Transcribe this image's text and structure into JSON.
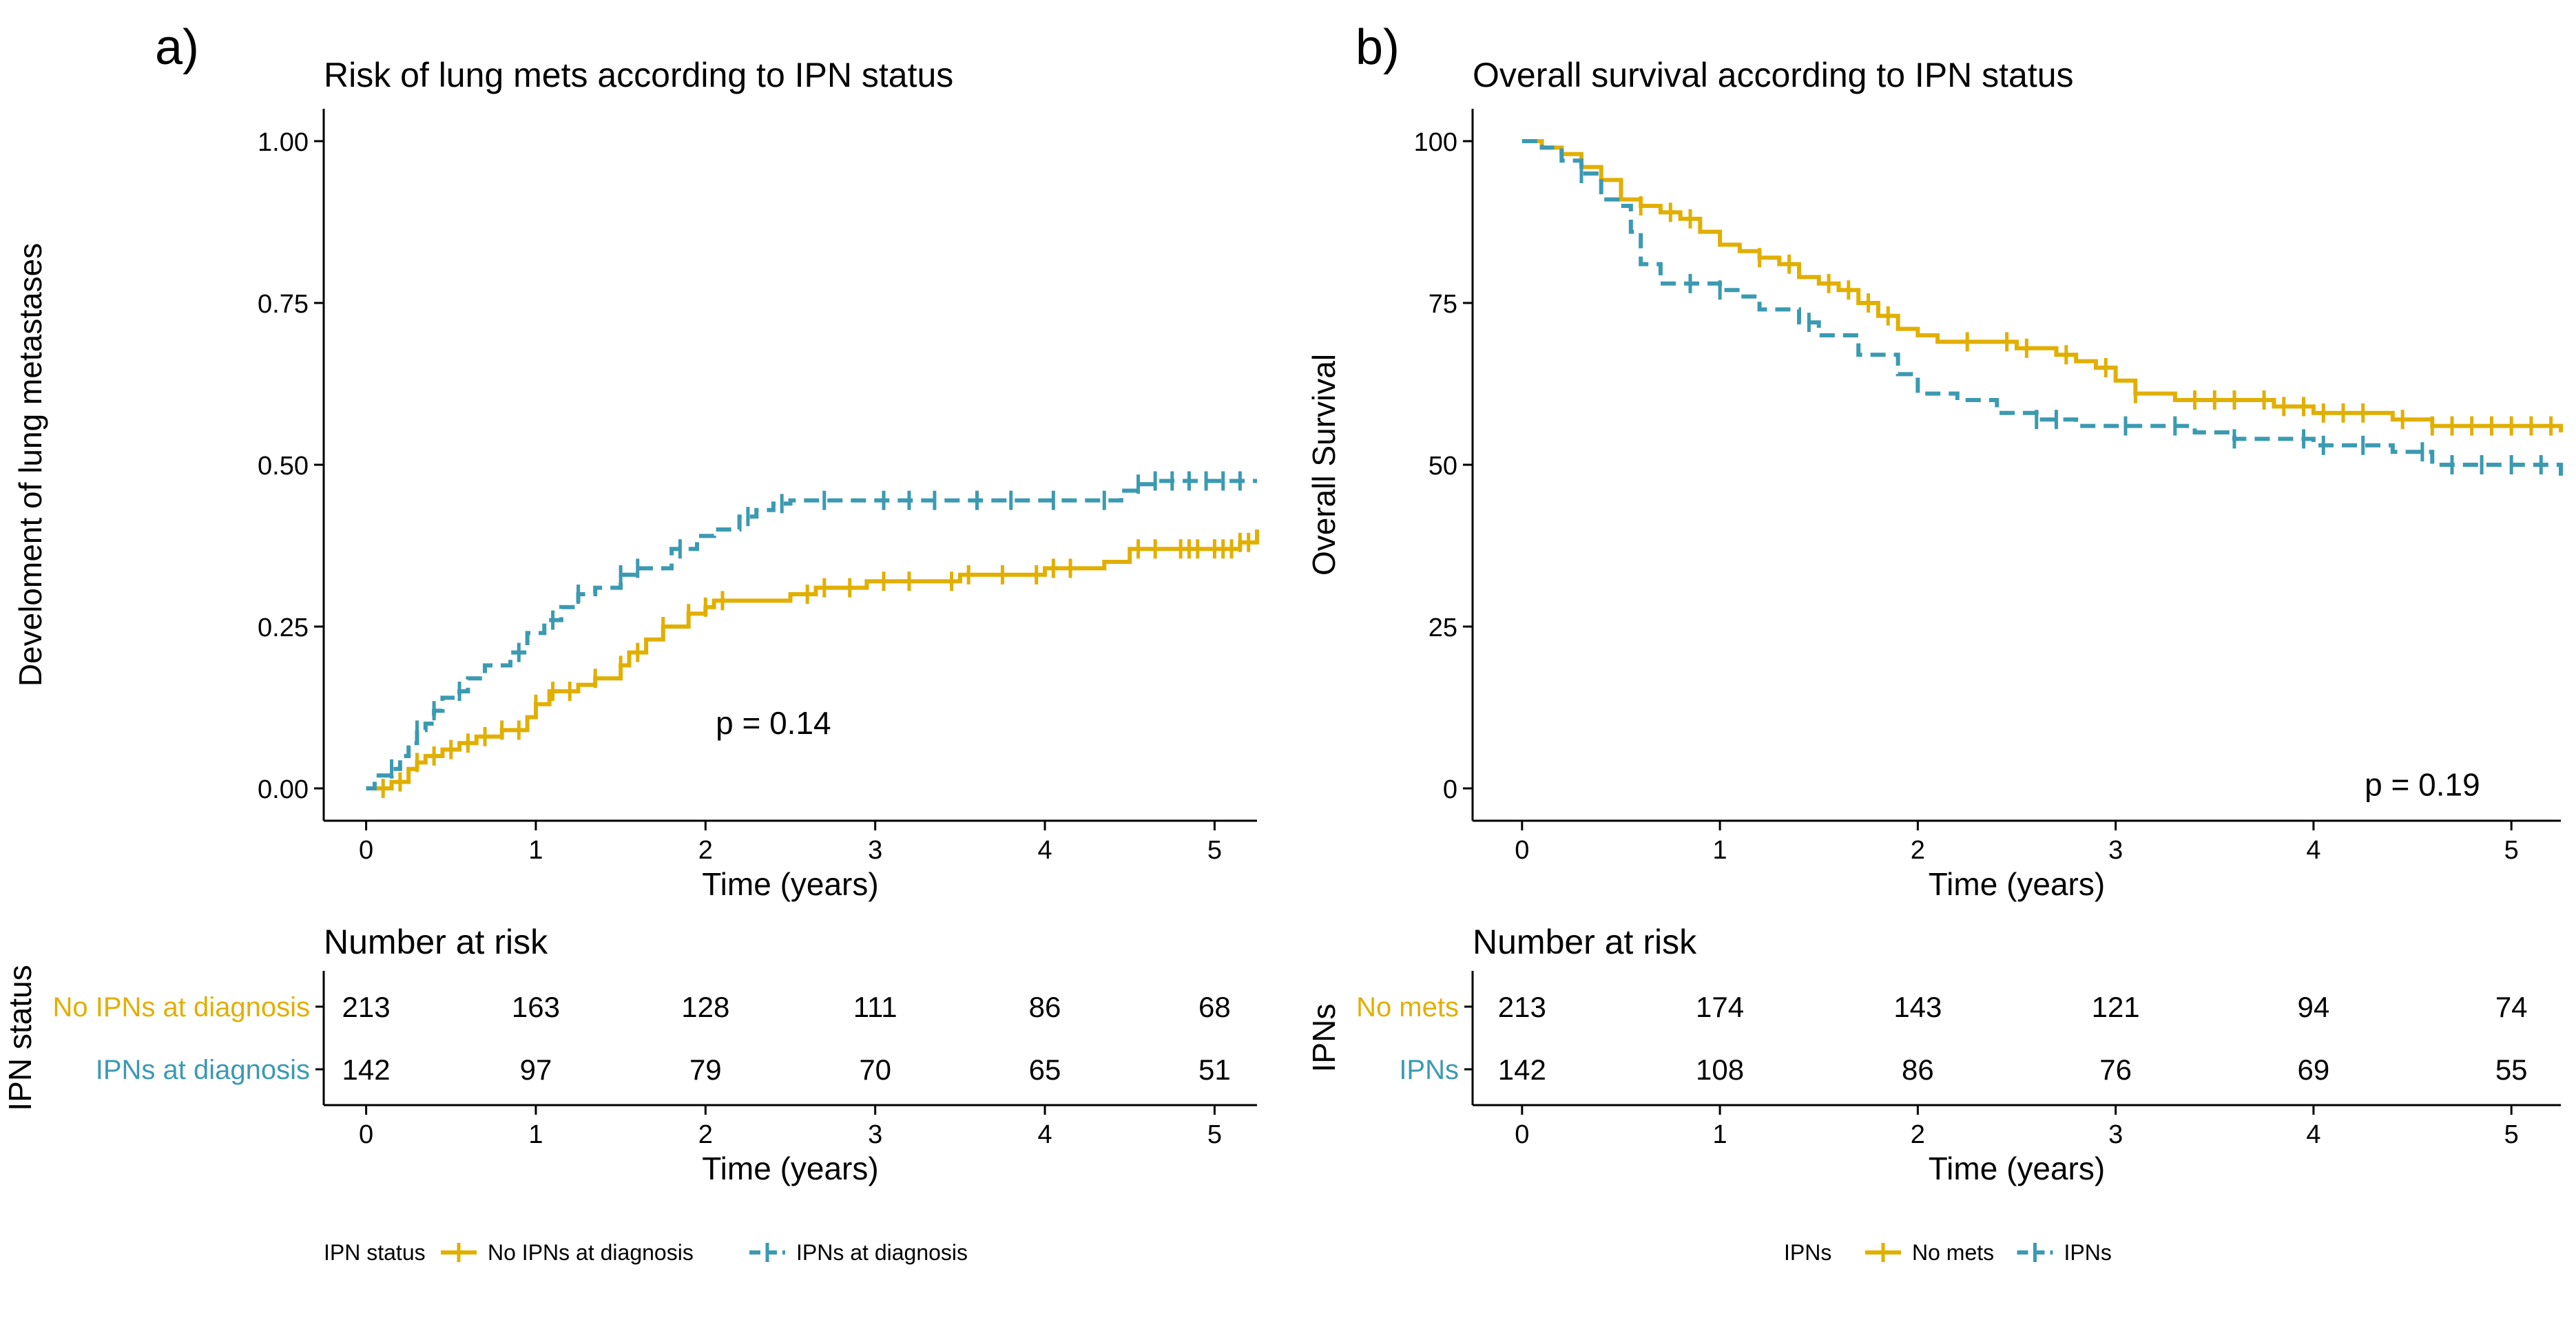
{
  "chart_data": [
    {
      "panel_label": "a)",
      "type": "line",
      "title": "Risk of lung mets according to IPN status",
      "xlabel": "Time (years)",
      "ylabel": "Develoment of lung metastases",
      "xlim": [
        -0.25,
        5.25
      ],
      "ylim": [
        -0.05,
        1.05
      ],
      "x_ticks": [
        0,
        1,
        2,
        3,
        4,
        5
      ],
      "x_tick_labels": [
        "0",
        "1",
        "2",
        "3",
        "4",
        "5"
      ],
      "y_ticks": [
        0,
        0.25,
        0.5,
        0.75,
        1.0
      ],
      "y_tick_labels": [
        "0.00",
        "0.25",
        "0.50",
        "0.75",
        "1.00"
      ],
      "grid": false,
      "annotation": {
        "text": "p = 0.14",
        "x": 2.4,
        "y": 0.1
      },
      "series": [
        {
          "name": "No IPNs at diagnosis",
          "color": "#E1AF00",
          "dash": "solid",
          "x": [
            0,
            0.1,
            0.15,
            0.25,
            0.3,
            0.35,
            0.45,
            0.55,
            0.65,
            0.8,
            0.95,
            1.0,
            1.08,
            1.25,
            1.35,
            1.5,
            1.55,
            1.65,
            1.75,
            1.9,
            2.0,
            2.05,
            2.2,
            2.35,
            2.5,
            2.65,
            2.8,
            2.95,
            3.1,
            3.3,
            3.5,
            3.65,
            3.8,
            4.0,
            4.1,
            4.25,
            4.35,
            4.5,
            4.7,
            4.95,
            5.05,
            5.15,
            5.25
          ],
          "y": [
            0,
            0,
            0.01,
            0.03,
            0.04,
            0.05,
            0.06,
            0.07,
            0.08,
            0.09,
            0.11,
            0.13,
            0.15,
            0.16,
            0.17,
            0.19,
            0.21,
            0.23,
            0.25,
            0.27,
            0.28,
            0.29,
            0.29,
            0.29,
            0.3,
            0.31,
            0.31,
            0.32,
            0.32,
            0.32,
            0.33,
            0.33,
            0.33,
            0.34,
            0.34,
            0.34,
            0.35,
            0.37,
            0.37,
            0.37,
            0.37,
            0.38,
            0.4
          ],
          "censor_x": [
            0.1,
            0.2,
            0.3,
            0.4,
            0.5,
            0.6,
            0.7,
            0.8,
            0.9,
            1.0,
            1.1,
            1.2,
            1.35,
            1.5,
            1.6,
            1.75,
            1.9,
            2.0,
            2.1,
            2.6,
            2.7,
            2.85,
            3.05,
            3.2,
            3.45,
            3.55,
            3.75,
            3.95,
            4.05,
            4.15,
            4.55,
            4.65,
            4.8,
            4.85,
            4.9,
            5.0,
            5.05,
            5.1,
            5.15,
            5.2
          ]
        },
        {
          "name": "IPNs at diagnosis",
          "color": "#3B9AB2",
          "dash": "dashed",
          "x": [
            0,
            0.05,
            0.15,
            0.2,
            0.25,
            0.3,
            0.35,
            0.4,
            0.45,
            0.55,
            0.6,
            0.7,
            0.85,
            0.95,
            1.05,
            1.15,
            1.25,
            1.35,
            1.5,
            1.6,
            1.8,
            1.95,
            2.05,
            2.2,
            2.3,
            2.4,
            2.5,
            2.6,
            3.0,
            3.5,
            4.0,
            4.3,
            4.45,
            4.55,
            4.65,
            5.0,
            5.25
          ],
          "y": [
            0,
            0.02,
            0.03,
            0.05,
            0.07,
            0.09,
            0.1,
            0.12,
            0.14,
            0.15,
            0.17,
            0.19,
            0.21,
            0.24,
            0.26,
            0.28,
            0.3,
            0.31,
            0.33,
            0.34,
            0.37,
            0.39,
            0.4,
            0.42,
            0.43,
            0.44,
            0.445,
            0.445,
            0.445,
            0.445,
            0.445,
            0.445,
            0.46,
            0.47,
            0.475,
            0.475,
            0.475
          ],
          "censor_x": [
            0.15,
            0.3,
            0.4,
            0.55,
            0.9,
            1.1,
            1.25,
            1.5,
            1.6,
            1.85,
            2.25,
            2.45,
            2.7,
            3.05,
            3.2,
            3.35,
            3.6,
            3.8,
            4.05,
            4.35,
            4.55,
            4.65,
            4.75,
            4.85,
            4.95,
            5.05,
            5.15
          ]
        }
      ],
      "risk_table": {
        "title": "Number at risk",
        "ylabel": "IPN status",
        "xlabel": "Time (years)",
        "times": [
          0,
          1,
          2,
          3,
          4,
          5
        ],
        "rows": [
          {
            "label": "No IPNs at diagnosis",
            "color": "#E1AF00",
            "counts": [
              "213",
              "163",
              "128",
              "111",
              "86",
              "68"
            ]
          },
          {
            "label": "IPNs at diagnosis",
            "color": "#3B9AB2",
            "counts": [
              "142",
              "97",
              "79",
              "70",
              "65",
              "51"
            ]
          }
        ]
      },
      "legend": {
        "title": "IPN status",
        "position": "bottom",
        "items": [
          {
            "label": "No IPNs at diagnosis",
            "color": "#E1AF00"
          },
          {
            "label": "IPNs at diagnosis",
            "color": "#3B9AB2"
          }
        ]
      }
    },
    {
      "panel_label": "b)",
      "type": "line",
      "title": "Overall survival according to IPN status",
      "xlabel": "Time (years)",
      "ylabel": "Overall Survival",
      "xlim": [
        -0.25,
        5.25
      ],
      "ylim": [
        -5,
        105
      ],
      "x_ticks": [
        0,
        1,
        2,
        3,
        4,
        5
      ],
      "x_tick_labels": [
        "0",
        "1",
        "2",
        "3",
        "4",
        "5"
      ],
      "y_ticks": [
        0,
        25,
        50,
        75,
        100
      ],
      "y_tick_labels": [
        "0",
        "25",
        "50",
        "75",
        "100"
      ],
      "grid": false,
      "annotation": {
        "text": "p = 0.19",
        "x": 4.55,
        "y": 0.5
      },
      "series": [
        {
          "name": "No mets",
          "color": "#E1AF00",
          "dash": "solid",
          "x": [
            0,
            0.1,
            0.2,
            0.3,
            0.4,
            0.5,
            0.6,
            0.7,
            0.8,
            0.9,
            1.0,
            1.1,
            1.2,
            1.3,
            1.4,
            1.5,
            1.6,
            1.7,
            1.8,
            1.9,
            2.0,
            2.1,
            2.3,
            2.5,
            2.7,
            2.8,
            2.9,
            3.0,
            3.1,
            3.3,
            3.5,
            3.7,
            3.8,
            4.0,
            4.2,
            4.4,
            4.6,
            4.8,
            5.0,
            5.25
          ],
          "y": [
            100,
            99,
            98,
            96,
            94,
            91,
            90,
            89,
            88,
            86,
            84,
            83,
            82,
            81,
            79,
            78,
            77,
            75,
            73,
            71,
            70,
            69,
            69,
            68,
            67,
            66,
            65,
            63,
            61,
            60,
            60,
            60,
            59,
            58,
            58,
            57,
            56,
            56,
            56,
            55
          ],
          "censor_x": [
            0.6,
            0.75,
            0.85,
            1.2,
            1.35,
            1.55,
            1.65,
            1.75,
            1.85,
            2.25,
            2.45,
            2.55,
            2.75,
            2.95,
            3.1,
            3.4,
            3.5,
            3.6,
            3.75,
            3.85,
            3.95,
            4.05,
            4.15,
            4.25,
            4.45,
            4.6,
            4.7,
            4.8,
            4.9,
            5.0,
            5.1,
            5.2
          ]
        },
        {
          "name": "IPNs",
          "color": "#3B9AB2",
          "dash": "dashed",
          "x": [
            0,
            0.1,
            0.2,
            0.3,
            0.4,
            0.5,
            0.55,
            0.6,
            0.7,
            0.9,
            1.0,
            1.1,
            1.2,
            1.4,
            1.5,
            1.7,
            1.9,
            2.0,
            2.2,
            2.4,
            2.6,
            2.8,
            3.0,
            3.2,
            3.4,
            3.6,
            3.8,
            4.0,
            4.2,
            4.4,
            4.6,
            4.8,
            5.0,
            5.25
          ],
          "y": [
            100,
            99,
            97,
            95,
            91,
            90,
            86,
            81,
            78,
            78,
            77,
            76,
            74,
            72,
            70,
            67,
            64,
            61,
            60,
            58,
            57,
            56,
            56,
            56,
            55,
            54,
            54,
            53,
            53,
            52,
            50,
            50,
            50,
            48
          ],
          "censor_x": [
            0.3,
            0.85,
            1.0,
            1.45,
            2.6,
            2.7,
            3.05,
            3.3,
            3.6,
            3.95,
            4.05,
            4.25,
            4.55,
            4.7,
            4.85,
            5.0,
            5.15
          ]
        }
      ],
      "risk_table": {
        "title": "Number at risk",
        "ylabel": "IPNs",
        "xlabel": "Time (years)",
        "times": [
          0,
          1,
          2,
          3,
          4,
          5
        ],
        "rows": [
          {
            "label": "No mets",
            "color": "#E1AF00",
            "counts": [
              "213",
              "174",
              "143",
              "121",
              "94",
              "74"
            ]
          },
          {
            "label": "IPNs",
            "color": "#3B9AB2",
            "counts": [
              "142",
              "108",
              "86",
              "76",
              "69",
              "55"
            ]
          }
        ]
      },
      "legend": {
        "title": "IPNs",
        "position": "bottom",
        "items": [
          {
            "label": "No mets",
            "color": "#E1AF00"
          },
          {
            "label": "IPNs",
            "color": "#3B9AB2"
          }
        ]
      }
    }
  ]
}
